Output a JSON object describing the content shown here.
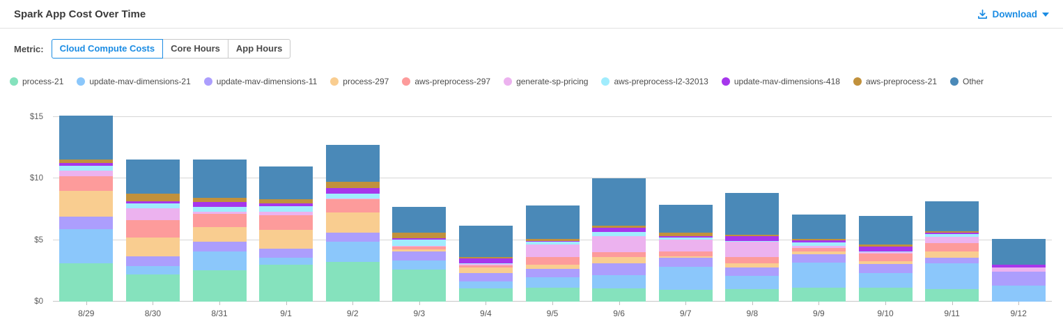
{
  "header": {
    "title": "Spark App Cost Over Time",
    "download_label": "Download"
  },
  "metric": {
    "label": "Metric:",
    "tabs": [
      {
        "label": "Cloud Compute Costs",
        "active": true
      },
      {
        "label": "Core Hours",
        "active": false
      },
      {
        "label": "App Hours",
        "active": false
      }
    ]
  },
  "colors": {
    "accent": "#1b8ce3",
    "divider": "#e2e2e2",
    "gridline": "#d6d6d6",
    "axis_text": "#5f5f5f"
  },
  "chart_data": {
    "type": "bar",
    "stacked": true,
    "title": "Spark App Cost Over Time",
    "xlabel": "",
    "ylabel": "",
    "ylim": [
      0,
      15
    ],
    "yticks": [
      0,
      5,
      10,
      15
    ],
    "ytick_labels": [
      "$0",
      "$5",
      "$10",
      "$15"
    ],
    "grid": true,
    "legend_position": "top",
    "categories": [
      "8/29",
      "8/30",
      "8/31",
      "9/1",
      "9/2",
      "9/3",
      "9/4",
      "9/5",
      "9/6",
      "9/7",
      "9/8",
      "9/9",
      "9/10",
      "9/11",
      "9/12"
    ],
    "series": [
      {
        "name": "process-21",
        "color": "#85E2BD",
        "values": [
          3.1,
          2.2,
          2.55,
          3.0,
          3.2,
          2.6,
          1.05,
          1.15,
          1.1,
          0.95,
          1.0,
          1.15,
          1.15,
          1.0,
          0
        ]
      },
      {
        "name": "update-mav-dimensions-21",
        "color": "#8BC7FB",
        "values": [
          2.8,
          0.7,
          1.55,
          0.55,
          1.65,
          0.75,
          0.6,
          0.85,
          1.05,
          1.9,
          1.1,
          2.0,
          1.2,
          2.1,
          1.3
        ]
      },
      {
        "name": "update-mav-dimensions-11",
        "color": "#AC9EFD",
        "values": [
          1.0,
          0.8,
          0.75,
          0.75,
          0.75,
          0.75,
          0.7,
          0.65,
          0.95,
          0.7,
          0.7,
          0.7,
          0.7,
          0.45,
          1.15
        ]
      },
      {
        "name": "process-297",
        "color": "#F9CD90",
        "values": [
          2.1,
          1.5,
          1.2,
          1.55,
          1.65,
          0.15,
          0.4,
          0.35,
          0.55,
          0.15,
          0.3,
          0.25,
          0.25,
          0.55,
          0
        ]
      },
      {
        "name": "aws-preprocess-297",
        "color": "#FD9B9B",
        "values": [
          1.2,
          1.4,
          1.1,
          1.15,
          1.05,
          0.2,
          0.2,
          0.65,
          0.35,
          0.4,
          0.55,
          0.25,
          0.6,
          0.65,
          0
        ]
      },
      {
        "name": "generate-sp-pricing",
        "color": "#ECB2EF",
        "values": [
          0.45,
          1.0,
          0.15,
          0.3,
          0.1,
          0.1,
          0.1,
          1.0,
          1.3,
          0.95,
          1.2,
          0.2,
          0.1,
          0.5,
          0.3
        ]
      },
      {
        "name": "aws-preprocess-l2-32013",
        "color": "#A0ECFD",
        "values": [
          0.4,
          0.4,
          0.4,
          0.45,
          0.4,
          0.5,
          0.05,
          0.2,
          0.35,
          0.15,
          0.1,
          0.25,
          0.1,
          0.25,
          0
        ]
      },
      {
        "name": "update-mav-dimensions-418",
        "color": "#A636EC",
        "values": [
          0.2,
          0.15,
          0.4,
          0.25,
          0.45,
          0.12,
          0.4,
          0.1,
          0.35,
          0.15,
          0.35,
          0.18,
          0.4,
          0.1,
          0.25
        ]
      },
      {
        "name": "aws-preprocess-21",
        "color": "#C1913C",
        "values": [
          0.3,
          0.65,
          0.35,
          0.35,
          0.5,
          0.45,
          0.1,
          0.15,
          0.15,
          0.25,
          0.15,
          0.12,
          0.15,
          0.15,
          0
        ]
      },
      {
        "name": "Other",
        "color": "#4A89B8",
        "values": [
          3.55,
          2.75,
          3.1,
          2.65,
          3.0,
          2.1,
          2.6,
          2.7,
          3.85,
          2.25,
          3.4,
          2.0,
          2.3,
          2.4,
          2.1
        ]
      }
    ]
  }
}
